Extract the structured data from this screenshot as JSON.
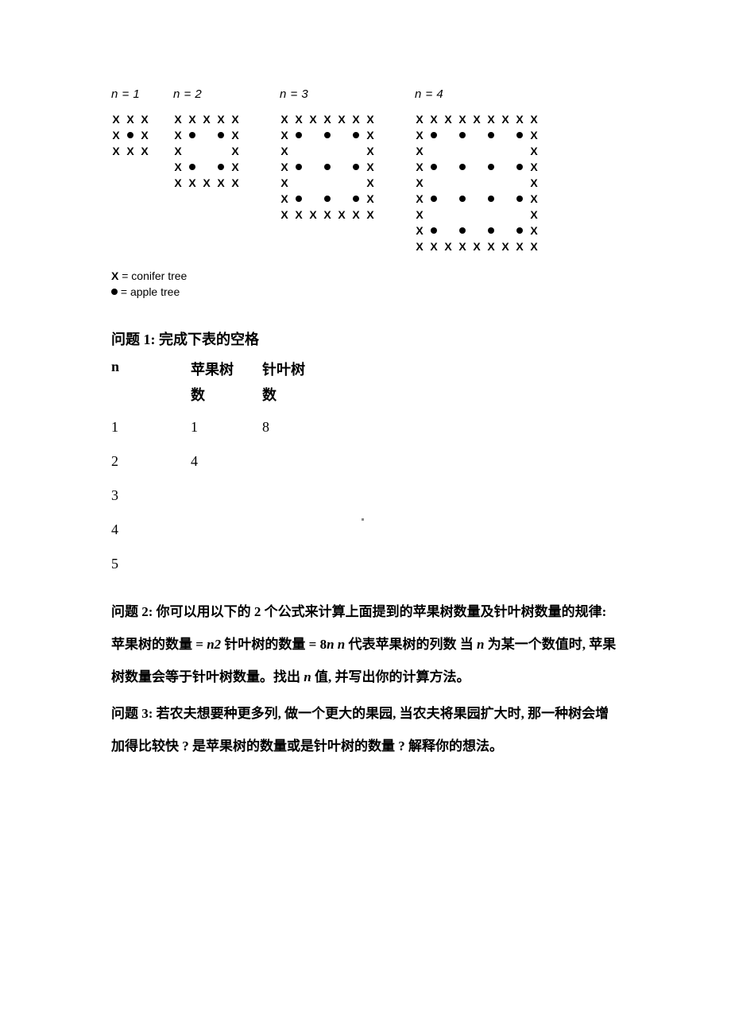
{
  "diagrams": {
    "labels": [
      "n = 1",
      "n = 2",
      "n = 3",
      "n = 4"
    ],
    "x_symbol": "X",
    "sizes": [
      1,
      2,
      3,
      4
    ]
  },
  "legend": {
    "x_label": "= conifer tree",
    "x_symbol": "X",
    "dot_label": "= apple tree"
  },
  "q1": {
    "title": "问题 1: 完成下表的空格",
    "headers": {
      "n": "n",
      "apple": "苹果树",
      "conifer": "针叶树"
    },
    "sub": {
      "apple": "数",
      "conifer": "数"
    },
    "rows": [
      {
        "n": "1",
        "apple": "1",
        "conifer": "8"
      },
      {
        "n": "2",
        "apple": "4",
        "conifer": ""
      },
      {
        "n": "3",
        "apple": "",
        "conifer": ""
      },
      {
        "n": "4",
        "apple": "",
        "conifer": ""
      },
      {
        "n": "5",
        "apple": "",
        "conifer": ""
      }
    ]
  },
  "q2": {
    "text_before_n2": "问题 2:   你可以用以下的 2 个公式来计算上面提到的苹果树数量及针叶树数量的规律:   苹果树的数量 = ",
    "n2": "n2",
    "text_mid": " 针叶树的数量 = 8",
    "n": "n  n",
    "text_after": " 代表苹果树的列数 当 ",
    "n_single": "n",
    "text_after2": " 为某一个数值时,  苹果树数量会等于针叶树数量。找出 ",
    "n_single2": "n",
    "text_end": " 值,  并写出你的计算方法。"
  },
  "q3": {
    "text": "问题 3:   若农夫想要种更多列,  做一个更大的果园,  当农夫将果园扩大时,  那一种树会增加得比较快 ? 是苹果树的数量或是针叶树的数量 ? 解释你的想法。"
  },
  "colors": {
    "background": "#ffffff",
    "text": "#000000"
  }
}
